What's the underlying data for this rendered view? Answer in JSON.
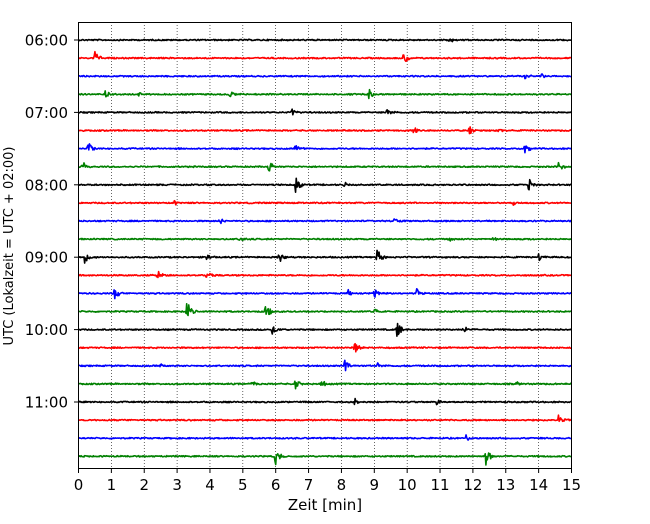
{
  "chart_data": {
    "type": "line",
    "title": "",
    "xlabel": "Zeit  [min]",
    "ylabel": "UTC (Lokalzeit = UTC + 02:00)",
    "xlim": [
      0,
      15
    ],
    "x_ticks": [
      "0",
      "1",
      "2",
      "3",
      "4",
      "5",
      "6",
      "7",
      "8",
      "9",
      "10",
      "11",
      "12",
      "13",
      "14",
      "15"
    ],
    "y_tick_labels": [
      "06:00",
      "07:00",
      "08:00",
      "09:00",
      "10:00",
      "11:00"
    ],
    "grid": "vertical dotted lines at each minute",
    "trace_interval_minutes": 15,
    "start_time": "06:00",
    "series": [
      {
        "color": "#000000",
        "events": [
          {
            "t": 11.3,
            "a": 0.4
          }
        ]
      },
      {
        "color": "#ff0000",
        "events": [
          {
            "t": 0.5,
            "a": 0.9
          },
          {
            "t": 9.9,
            "a": 0.7
          }
        ]
      },
      {
        "color": "#0000ff",
        "events": [
          {
            "t": 13.6,
            "a": 0.3
          },
          {
            "t": 14.1,
            "a": 0.3
          }
        ]
      },
      {
        "color": "#008000",
        "events": [
          {
            "t": 0.8,
            "a": 0.5
          },
          {
            "t": 1.8,
            "a": 0.3
          },
          {
            "t": 4.6,
            "a": 0.5
          },
          {
            "t": 8.8,
            "a": 0.8
          }
        ]
      },
      {
        "color": "#000000",
        "events": [
          {
            "t": 6.5,
            "a": 0.4
          },
          {
            "t": 9.4,
            "a": 0.4
          }
        ]
      },
      {
        "color": "#ff0000",
        "events": [
          {
            "t": 10.2,
            "a": 0.5
          },
          {
            "t": 11.9,
            "a": 0.5
          },
          {
            "t": 12.8,
            "a": 0.3
          }
        ]
      },
      {
        "color": "#0000ff",
        "events": [
          {
            "t": 0.3,
            "a": 0.8
          },
          {
            "t": 6.6,
            "a": 0.5
          },
          {
            "t": 13.6,
            "a": 0.9
          }
        ]
      },
      {
        "color": "#008000",
        "events": [
          {
            "t": 0.1,
            "a": 0.8
          },
          {
            "t": 5.8,
            "a": 0.7
          },
          {
            "t": 14.6,
            "a": 1.1
          }
        ]
      },
      {
        "color": "#000000",
        "events": [
          {
            "t": 6.6,
            "a": 1.1
          },
          {
            "t": 8.1,
            "a": 0.4
          },
          {
            "t": 13.7,
            "a": 0.8
          }
        ]
      },
      {
        "color": "#ff0000",
        "events": [
          {
            "t": 2.9,
            "a": 0.3
          },
          {
            "t": 13.2,
            "a": 0.3
          }
        ]
      },
      {
        "color": "#0000ff",
        "events": [
          {
            "t": 4.3,
            "a": 0.4
          },
          {
            "t": 9.6,
            "a": 0.3
          }
        ]
      },
      {
        "color": "#008000",
        "events": [
          {
            "t": 4.9,
            "a": 0.4
          },
          {
            "t": 11.3,
            "a": 0.3
          },
          {
            "t": 12.6,
            "a": 0.3
          }
        ]
      },
      {
        "color": "#000000",
        "events": [
          {
            "t": 0.2,
            "a": 0.8
          },
          {
            "t": 3.9,
            "a": 0.5
          },
          {
            "t": 6.1,
            "a": 0.8
          },
          {
            "t": 9.1,
            "a": 1.1
          },
          {
            "t": 14.0,
            "a": 0.5
          }
        ]
      },
      {
        "color": "#ff0000",
        "events": [
          {
            "t": 2.4,
            "a": 0.6
          },
          {
            "t": 3.9,
            "a": 0.7
          }
        ]
      },
      {
        "color": "#0000ff",
        "events": [
          {
            "t": 1.1,
            "a": 0.9
          },
          {
            "t": 8.2,
            "a": 0.5
          },
          {
            "t": 9.0,
            "a": 0.6
          },
          {
            "t": 10.3,
            "a": 0.6
          }
        ]
      },
      {
        "color": "#008000",
        "events": [
          {
            "t": 3.3,
            "a": 1.3
          },
          {
            "t": 5.7,
            "a": 1.0
          },
          {
            "t": 9.0,
            "a": 0.4
          }
        ]
      },
      {
        "color": "#000000",
        "events": [
          {
            "t": 5.9,
            "a": 0.6
          },
          {
            "t": 9.7,
            "a": 1.1
          },
          {
            "t": 11.7,
            "a": 0.5
          }
        ]
      },
      {
        "color": "#ff0000",
        "events": [
          {
            "t": 8.4,
            "a": 0.8
          }
        ]
      },
      {
        "color": "#0000ff",
        "events": [
          {
            "t": 2.5,
            "a": 0.3
          },
          {
            "t": 8.1,
            "a": 1.0
          },
          {
            "t": 9.1,
            "a": 0.3
          }
        ]
      },
      {
        "color": "#008000",
        "events": [
          {
            "t": 5.3,
            "a": 0.4
          },
          {
            "t": 6.6,
            "a": 0.7
          },
          {
            "t": 7.4,
            "a": 0.4
          },
          {
            "t": 13.3,
            "a": 0.3
          }
        ]
      },
      {
        "color": "#000000",
        "events": [
          {
            "t": 8.4,
            "a": 0.5
          },
          {
            "t": 10.9,
            "a": 0.4
          }
        ]
      },
      {
        "color": "#ff0000",
        "events": [
          {
            "t": 14.6,
            "a": 0.7
          }
        ]
      },
      {
        "color": "#0000ff",
        "events": [
          {
            "t": 11.8,
            "a": 0.4
          }
        ]
      },
      {
        "color": "#008000",
        "events": [
          {
            "t": 6.0,
            "a": 0.9
          },
          {
            "t": 12.4,
            "a": 1.2
          }
        ]
      }
    ]
  }
}
